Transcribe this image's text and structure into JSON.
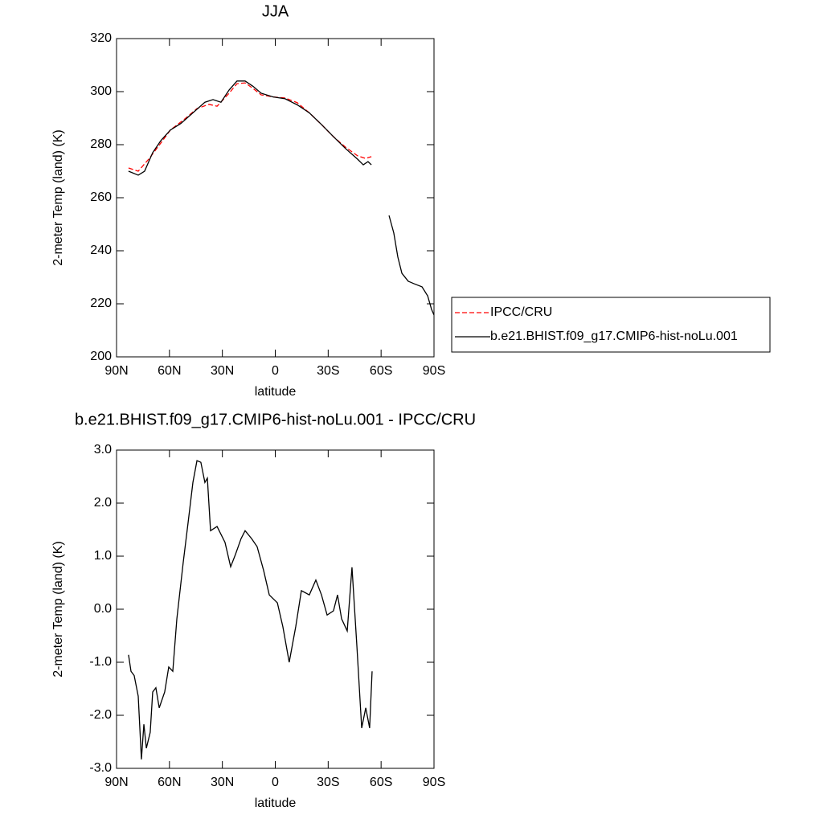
{
  "chart_data": [
    {
      "type": "line",
      "title": "JJA",
      "xlabel": "latitude",
      "ylabel": "2-meter Temp (land) (K)",
      "xlim": [
        90,
        -90
      ],
      "xticks": [
        {
          "value": 90,
          "label": "90N"
        },
        {
          "value": 60,
          "label": "60N"
        },
        {
          "value": 30,
          "label": "30N"
        },
        0,
        {
          "value": -30,
          "label": "30S"
        },
        {
          "value": -60,
          "label": "60S"
        },
        {
          "value": -90,
          "label": "90S"
        }
      ],
      "ylim": [
        200,
        320
      ],
      "yticks": [
        200,
        220,
        240,
        260,
        280,
        300,
        320
      ],
      "legend": "right",
      "series": [
        {
          "name": "IPCC/CRU",
          "color": "#ff0000",
          "dash": true,
          "x": [
            83.2,
            77.7,
            71.8,
            64.9,
            59.5,
            51.3,
            44.4,
            37.6,
            33.0,
            26.2,
            21.7,
            17.1,
            12.6,
            8.0,
            1.2,
            -5.6,
            -12.5,
            -19.3,
            -26.2,
            -33.0,
            -39.9,
            -46.7,
            -51.3,
            -54.5
          ],
          "values": [
            271.2,
            270,
            274.5,
            280.6,
            285.5,
            289.7,
            293.6,
            295.2,
            294.5,
            299.4,
            303,
            303.3,
            301.2,
            298.8,
            298,
            297.6,
            295.8,
            292,
            287.6,
            283,
            279,
            275.8,
            274.8,
            275.5
          ]
        },
        {
          "name": "b.e21.BHIST.f09_g17.CMIP6-hist-noLu.001",
          "color": "#000000",
          "dash": false,
          "x": [
            83.2,
            77.7,
            74.1,
            69.5,
            64.9,
            59.5,
            53.5,
            46.7,
            39.9,
            35.3,
            30.8,
            26.2,
            21.7,
            17.1,
            12.6,
            8.0,
            1.2,
            -5.6,
            -12.5,
            -19.3,
            -26.2,
            -33.0,
            -39.9,
            -46.7,
            -49.9,
            -52.6,
            -54.5,
            -60,
            -64.5,
            -67.2,
            -69.5,
            -71.8,
            -75.4,
            -78.6,
            -83.2,
            -86.4,
            -88.6,
            -90
          ],
          "values": [
            270,
            268.5,
            270,
            277,
            281.5,
            285.5,
            288,
            292,
            296,
            297,
            296,
            300.6,
            304,
            304,
            302,
            299.4,
            298,
            297.3,
            295,
            292,
            287.6,
            283,
            278.5,
            274.5,
            272.4,
            273.6,
            272.4,
            null,
            253.3,
            246.7,
            237.6,
            231.5,
            228.5,
            227.6,
            226.4,
            223,
            217.9,
            215.8
          ]
        }
      ]
    },
    {
      "type": "line",
      "title": "b.e21.BHIST.f09_g17.CMIP6-hist-noLu.001 - IPCC/CRU",
      "xlabel": "latitude",
      "ylabel": "2-meter Temp (land) (K)",
      "xlim": [
        90,
        -90
      ],
      "xticks": [
        {
          "value": 90,
          "label": "90N"
        },
        {
          "value": 60,
          "label": "60N"
        },
        {
          "value": 30,
          "label": "30N"
        },
        0,
        {
          "value": -30,
          "label": "30S"
        },
        {
          "value": -60,
          "label": "60S"
        },
        {
          "value": -90,
          "label": "90S"
        }
      ],
      "ylim": [
        -3,
        3
      ],
      "yticks": [
        {
          "value": -3,
          "label": "-3.0"
        },
        {
          "value": -2,
          "label": "-2.0"
        },
        {
          "value": -1,
          "label": "-1.0"
        },
        {
          "value": 0,
          "label": "0.0"
        },
        {
          "value": 1,
          "label": "1.0"
        },
        {
          "value": 2,
          "label": "2.0"
        },
        {
          "value": 3,
          "label": "3.0"
        }
      ],
      "series": [
        {
          "color": "#000000",
          "dash": false,
          "x": [
            83.2,
            81.8,
            80.0,
            77.7,
            75.9,
            74.5,
            73.1,
            70.9,
            69.5,
            67.7,
            65.8,
            62.7,
            60.4,
            58.1,
            55.8,
            52.2,
            49.4,
            46.7,
            44.4,
            42.2,
            39.9,
            38.5,
            36.7,
            33.0,
            28.5,
            25.3,
            22.6,
            19.4,
            17.1,
            13.4,
            10.3,
            6.6,
            3.4,
            -1.2,
            -4.3,
            -7.9,
            -11.6,
            -14.8,
            -19.3,
            -23.0,
            -26.2,
            -29.4,
            -33.0,
            -35.3,
            -37.6,
            -40.8,
            -43.5,
            -46.3,
            -49.0,
            -51.3,
            -53.5,
            -54.9
          ],
          "values": [
            -0.86,
            -1.17,
            -1.25,
            -1.64,
            -2.83,
            -2.17,
            -2.62,
            -2.32,
            -1.56,
            -1.48,
            -1.86,
            -1.56,
            -1.09,
            -1.17,
            -0.18,
            0.88,
            1.64,
            2.39,
            2.8,
            2.77,
            2.39,
            2.47,
            1.48,
            1.56,
            1.26,
            0.8,
            1.03,
            1.33,
            1.48,
            1.33,
            1.18,
            0.73,
            0.27,
            0.12,
            -0.33,
            -1.0,
            -0.33,
            0.35,
            0.27,
            0.55,
            0.27,
            -0.11,
            -0.03,
            0.27,
            -0.18,
            -0.41,
            0.79,
            -0.71,
            -2.24,
            -1.86,
            -2.24,
            -1.17
          ]
        }
      ]
    }
  ]
}
